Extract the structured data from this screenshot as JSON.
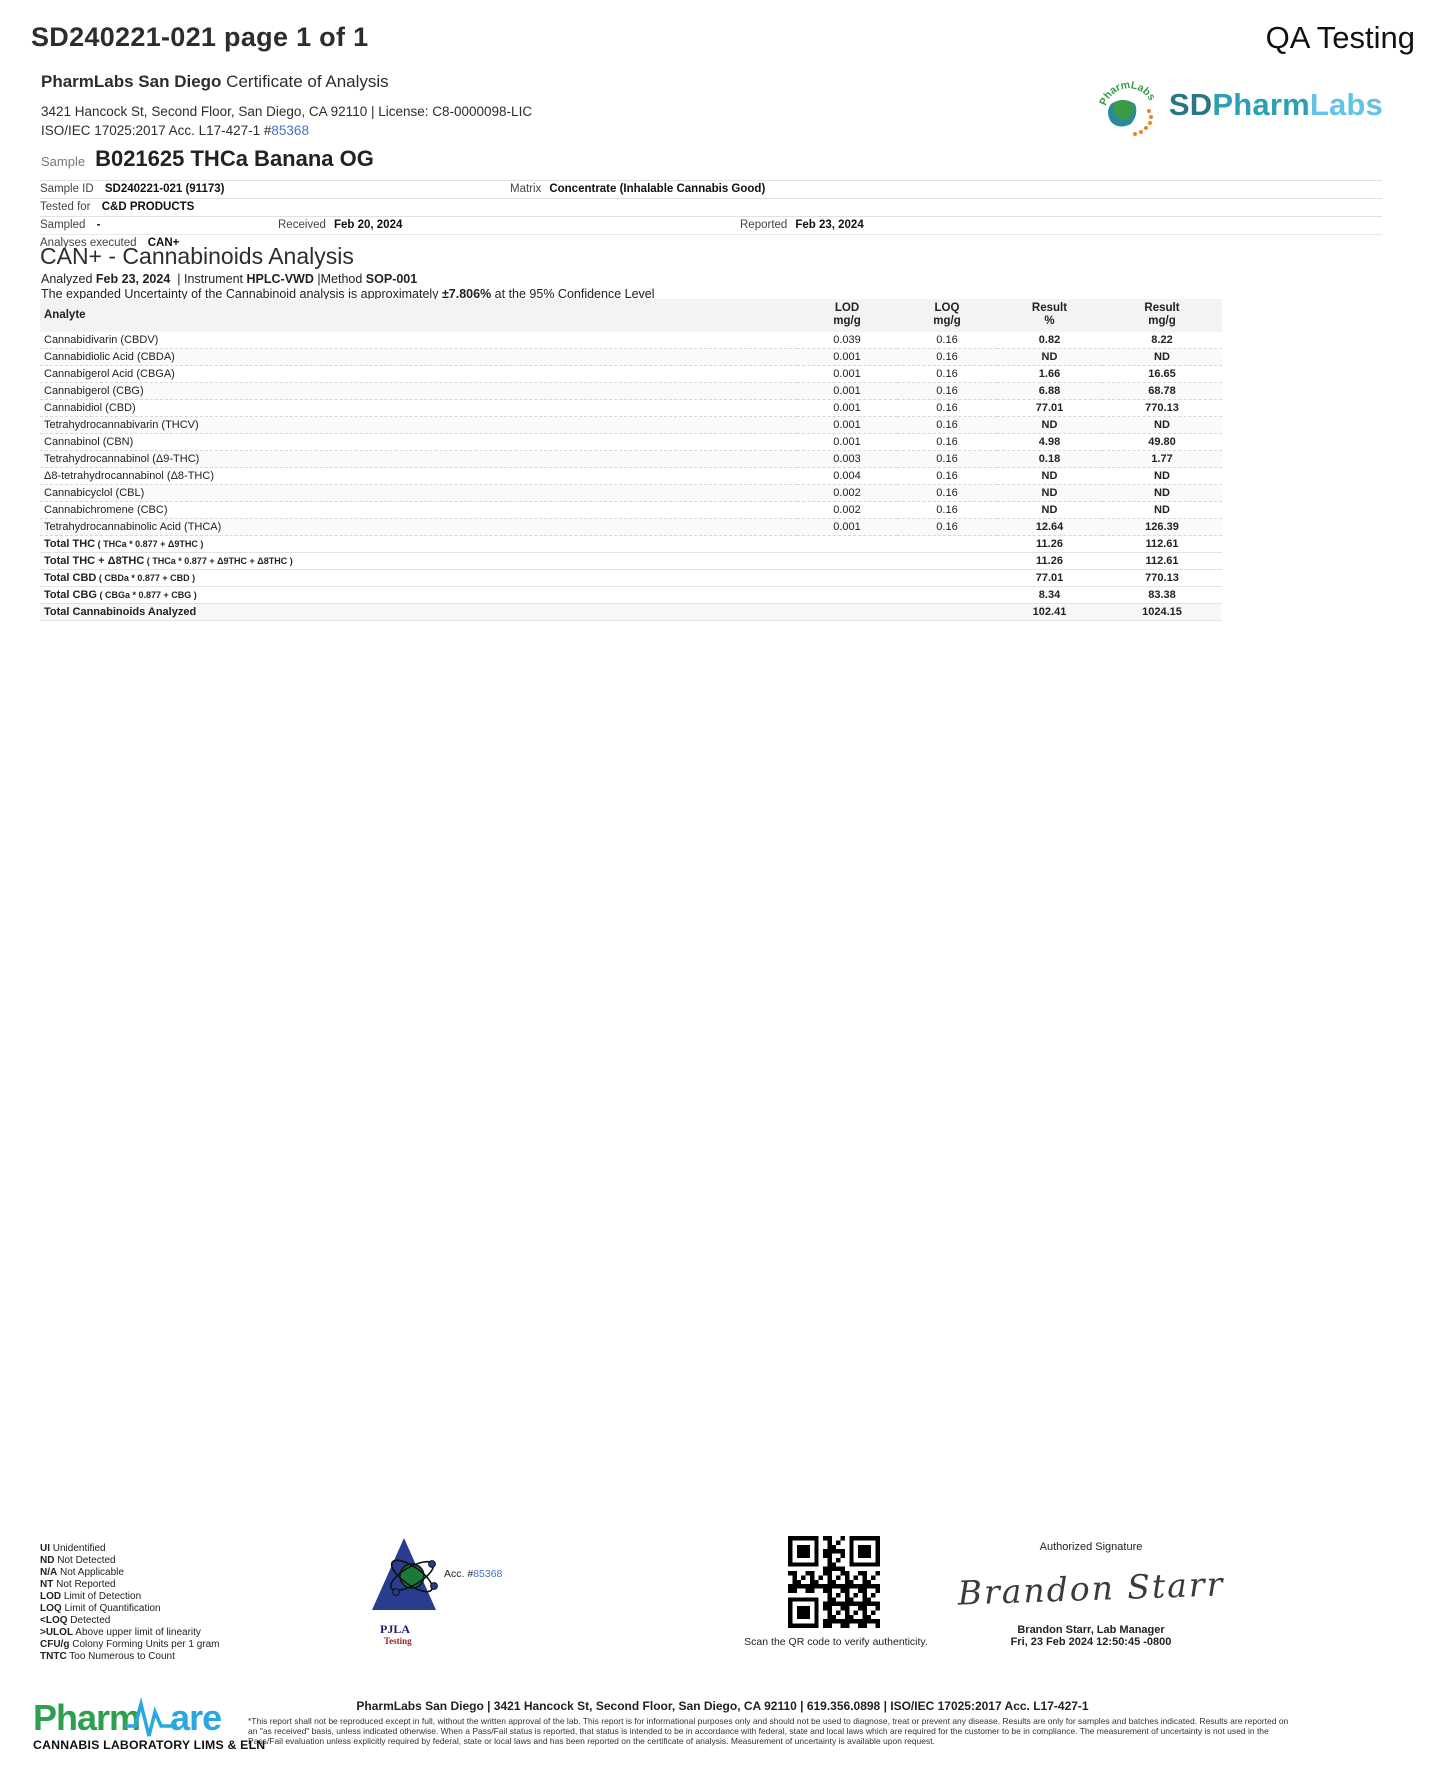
{
  "page": {
    "doc_title": "SD240221-021 page 1 of 1",
    "qa_label": "QA Testing"
  },
  "lab": {
    "name": "PharmLabs San Diego",
    "cert_title": "Certificate of Analysis",
    "address_line": "3421 Hancock St, Second Floor, San Diego, CA 92110 |  License: C8-0000098-LIC",
    "iso_line_prefix": "ISO/IEC 17025:2017 Acc. L17-427-1 #",
    "iso_acc_number": "85368"
  },
  "brand": {
    "sd": "SD",
    "pharm": "Pharm",
    "labs": "Labs",
    "arc_text": "PharmLabs",
    "teal": "#2c9fb5",
    "green": "#3a9b45",
    "orange": "#e8842c"
  },
  "sample": {
    "label": "Sample",
    "name": "B021625 THCa Banana OG"
  },
  "info": {
    "sample_id_label": "Sample ID",
    "sample_id": "SD240221-021 (91173)",
    "matrix_label": "Matrix",
    "matrix": "Concentrate (Inhalable Cannabis Good)",
    "tested_for_label": "Tested for",
    "tested_for": "C&D PRODUCTS",
    "sampled_label": "Sampled",
    "sampled": "-",
    "received_label": "Received",
    "received": "Feb 20, 2024",
    "reported_label": "Reported",
    "reported": "Feb 23, 2024",
    "analyses_label": "Analyses executed",
    "analyses": "CAN+"
  },
  "section": {
    "title": "CAN+ - Cannabinoids Analysis",
    "analyzed_label": "Analyzed",
    "analyzed": "Feb 23, 2024",
    "pipe": "|",
    "instrument_label": "Instrument",
    "instrument": "HPLC-VWD",
    "method_label": "Method",
    "method": "SOP-001",
    "uncertainty_prefix": "The expanded Uncertainty of the Cannabinoid analysis is approximately ",
    "uncertainty_value": "±7.806%",
    "uncertainty_suffix": " at the 95% Confidence Level"
  },
  "table": {
    "headers": {
      "analyte": "Analyte",
      "lod": "LOD",
      "loq": "LOQ",
      "result": "Result",
      "unit_mgg": "mg/g",
      "unit_pct": "%"
    },
    "rows": [
      {
        "analyte": "Cannabidivarin (CBDV)",
        "lod": "0.039",
        "loq": "0.16",
        "pct": "0.82",
        "mgg": "8.22",
        "nd": false
      },
      {
        "analyte": "Cannabidiolic Acid (CBDA)",
        "lod": "0.001",
        "loq": "0.16",
        "pct": "ND",
        "mgg": "ND",
        "nd": true
      },
      {
        "analyte": "Cannabigerol Acid (CBGA)",
        "lod": "0.001",
        "loq": "0.16",
        "pct": "1.66",
        "mgg": "16.65",
        "nd": false
      },
      {
        "analyte": "Cannabigerol (CBG)",
        "lod": "0.001",
        "loq": "0.16",
        "pct": "6.88",
        "mgg": "68.78",
        "nd": false
      },
      {
        "analyte": "Cannabidiol (CBD)",
        "lod": "0.001",
        "loq": "0.16",
        "pct": "77.01",
        "mgg": "770.13",
        "nd": false
      },
      {
        "analyte": "Tetrahydrocannabivarin (THCV)",
        "lod": "0.001",
        "loq": "0.16",
        "pct": "ND",
        "mgg": "ND",
        "nd": true
      },
      {
        "analyte": "Cannabinol (CBN)",
        "lod": "0.001",
        "loq": "0.16",
        "pct": "4.98",
        "mgg": "49.80",
        "nd": false
      },
      {
        "analyte": "Tetrahydrocannabinol (Δ9-THC)",
        "lod": "0.003",
        "loq": "0.16",
        "pct": "0.18",
        "mgg": "1.77",
        "nd": false
      },
      {
        "analyte": "Δ8-tetrahydrocannabinol (Δ8-THC)",
        "lod": "0.004",
        "loq": "0.16",
        "pct": "ND",
        "mgg": "ND",
        "nd": true
      },
      {
        "analyte": "Cannabicyclol (CBL)",
        "lod": "0.002",
        "loq": "0.16",
        "pct": "ND",
        "mgg": "ND",
        "nd": true
      },
      {
        "analyte": "Cannabichromene (CBC)",
        "lod": "0.002",
        "loq": "0.16",
        "pct": "ND",
        "mgg": "ND",
        "nd": true
      },
      {
        "analyte": "Tetrahydrocannabinolic Acid (THCA)",
        "lod": "0.001",
        "loq": "0.16",
        "pct": "12.64",
        "mgg": "126.39",
        "nd": false
      }
    ],
    "totals": [
      {
        "label": "Total THC",
        "formula": "( THCa * 0.877 + Δ9THC )",
        "pct": "11.26",
        "mgg": "112.61"
      },
      {
        "label": "Total THC + Δ8THC",
        "formula": "( THCa * 0.877 + Δ9THC + Δ8THC )",
        "pct": "11.26",
        "mgg": "112.61"
      },
      {
        "label": "Total CBD",
        "formula": "( CBDa * 0.877 + CBD )",
        "pct": "77.01",
        "mgg": "770.13"
      },
      {
        "label": "Total CBG",
        "formula": "( CBGa * 0.877 + CBG )",
        "pct": "8.34",
        "mgg": "83.38"
      },
      {
        "label": "Total Cannabinoids Analyzed",
        "formula": "",
        "pct": "102.41",
        "mgg": "1024.15"
      }
    ]
  },
  "colors": {
    "value_blue": "#3d52a5",
    "nd_green": "#2e8b61",
    "link_blue": "#4472c4"
  },
  "footer": {
    "legend": [
      {
        "abbr": "UI",
        "text": "Unidentified"
      },
      {
        "abbr": "ND",
        "text": "Not Detected"
      },
      {
        "abbr": "N/A",
        "text": "Not Applicable"
      },
      {
        "abbr": "NT",
        "text": "Not Reported"
      },
      {
        "abbr": "LOD",
        "text": "Limit of Detection"
      },
      {
        "abbr": "LOQ",
        "text": "Limit of Quantification"
      },
      {
        "abbr": "<LOQ",
        "text": "Detected"
      },
      {
        "abbr": ">ULOL",
        "text": "Above upper limit of linearity"
      },
      {
        "abbr": "CFU/g",
        "text": "Colony Forming Units per 1 gram"
      },
      {
        "abbr": "TNTC",
        "text": "Too Numerous to Count"
      }
    ],
    "pjla": {
      "acc_label": "Acc. #",
      "acc_number": "85368",
      "name": "PJLA",
      "sub": "Testing"
    },
    "qr_caption": "Scan the QR code to verify authenticity.",
    "signature": {
      "title": "Authorized Signature",
      "script": "Brandon Starr",
      "name_line": "Brandon Starr, Lab Manager",
      "date_line": "Fri, 23 Feb 2024 12:50:45 -0800"
    },
    "footer_line": "PharmLabs San Diego | 3421 Hancock St, Second Floor, San Diego, CA 92110 | 619.356.0898 | ISO/IEC 17025:2017 Acc. L17-427-1",
    "disclaimer_l1": "*This report shall not be reproduced except in full, without the written approval of the lab. This report is for informational purposes only and should not be used to diagnose, treat or prevent any disease. Results are only for samples and batches indicated. Results are reported on",
    "disclaimer_l2": "an \"as received\" basis, unless indicated otherwise. When a Pass/Fail status is reported, that status is intended to be in accordance with federal, state and local laws which are required for the customer to be in compliance. The measurement of uncertainty is not used in the",
    "disclaimer_l3": "Pass/Fail evaluation unless explicitly required by federal, state or local laws and has been reported on the certificate of analysis. Measurement of uncertainty is available upon request.",
    "pharmware": {
      "part1": "Pharm",
      "part2": "are",
      "tagline": "CANNABIS LABORATORY LIMS & ELN"
    }
  }
}
